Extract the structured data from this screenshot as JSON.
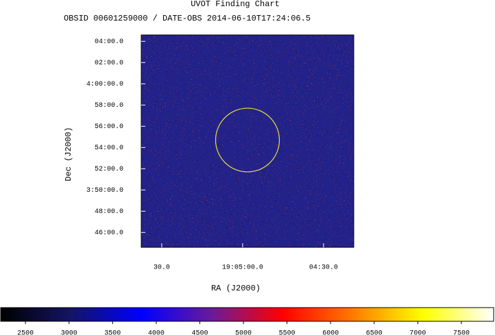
{
  "chart_data": {
    "type": "image",
    "title": "UVOT Finding Chart",
    "subtitle": "OBSID 00601259000 / DATE-OBS 2014-06-10T17:24:06.5",
    "x_label": "RA (J2000)",
    "y_label": "Dec (J2000)",
    "xlim": [
      337.6,
      258.8
    ],
    "xticks": [
      {
        "value": 330,
        "label": "30.0"
      },
      {
        "value": 300,
        "label": "19:05:00.0"
      },
      {
        "value": 270,
        "label": "04:30.0"
      }
    ],
    "ylim": [
      224.6,
      244.6
    ],
    "yticks": [
      {
        "value": 244,
        "label": "04:00.0"
      },
      {
        "value": 242,
        "label": "02:00.0"
      },
      {
        "value": 240,
        "label": "4:00:00.0"
      },
      {
        "value": 238,
        "label": "58:00.0"
      },
      {
        "value": 236,
        "label": "56:00.0"
      },
      {
        "value": 234,
        "label": "54:00.0"
      },
      {
        "value": 232,
        "label": "52:00.0"
      },
      {
        "value": 230,
        "label": "3:50:00.0"
      },
      {
        "value": 228,
        "label": "48:00.0"
      },
      {
        "value": 226,
        "label": "46:00.0"
      }
    ],
    "region": {
      "ra": 298.2,
      "dec": 234.7,
      "radius": 3.0,
      "color": "#e8e23a"
    },
    "colorbar": {
      "clim": [
        2216,
        7870
      ],
      "ticks": [
        2500,
        3000,
        3500,
        4000,
        4500,
        5000,
        5500,
        6000,
        6500,
        7000,
        7500
      ],
      "colormap": [
        "#000000",
        "#141466",
        "#0000ff",
        "#6a1a9a",
        "#ff0000",
        "#ff7a00",
        "#ffff00",
        "#ffffff"
      ]
    }
  }
}
